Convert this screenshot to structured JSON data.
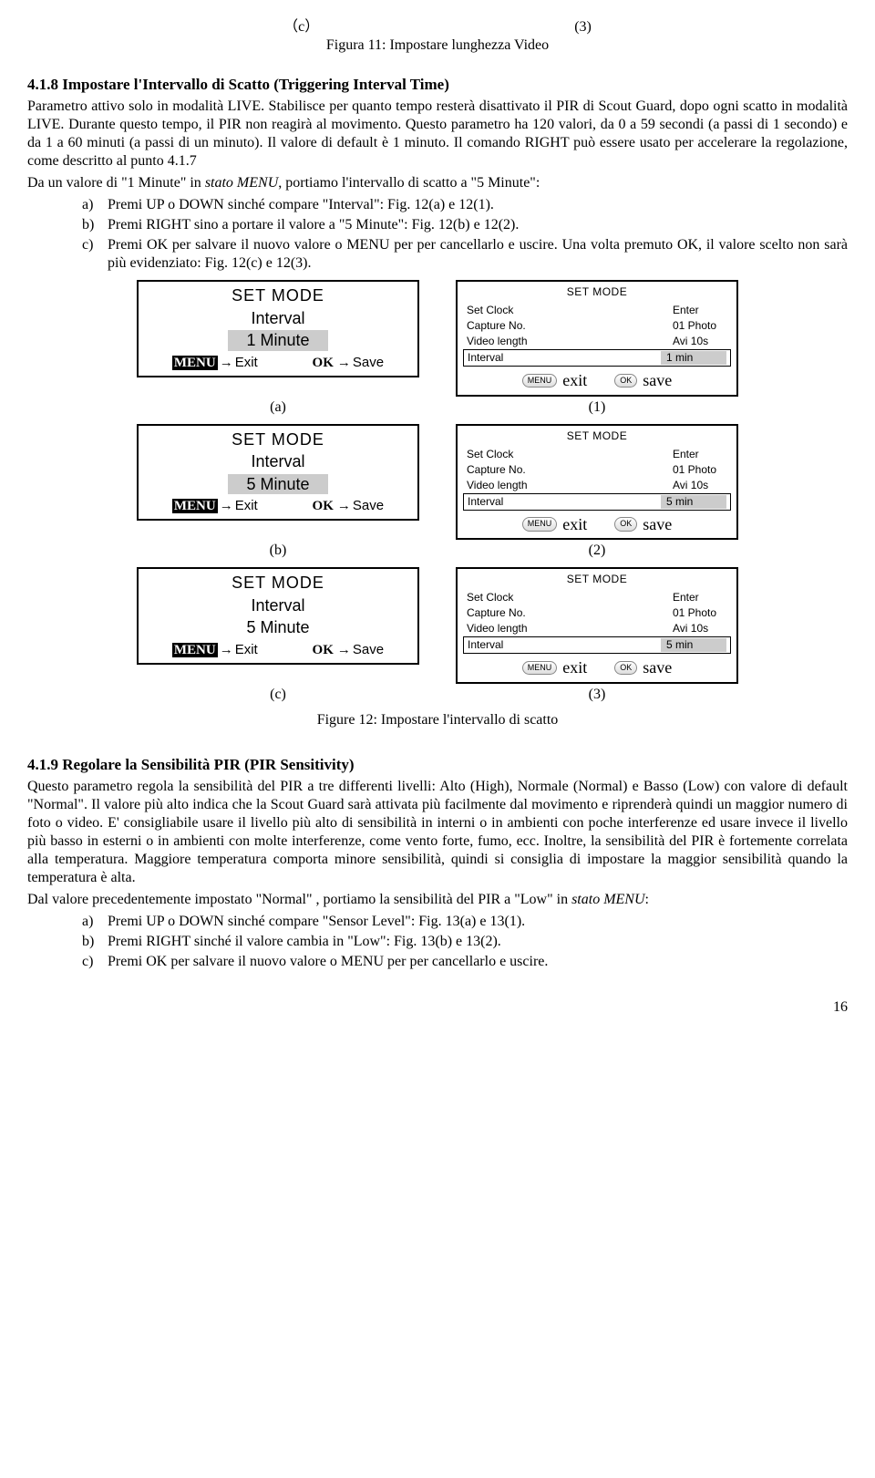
{
  "top_labels": {
    "c": "（c）",
    "n": "(3)",
    "caption": "Figura 11: Impostare lunghezza Video"
  },
  "s418": {
    "heading": "4.1.8 Impostare l'Intervallo di Scatto (Triggering Interval Time)",
    "para": "Parametro attivo solo in modalità LIVE. Stabilisce per quanto tempo resterà disattivato il PIR di Scout Guard, dopo ogni scatto in modalità LIVE. Durante questo tempo, il PIR non reagirà al movimento. Questo parametro ha 120 valori, da 0 a 59 secondi (a passi di 1 secondo) e da 1 a 60 minuti (a passi di un minuto). Il valore di default è 1 minuto. Il comando RIGHT può essere usato per accelerare la regolazione, come descritto al punto 4.1.7",
    "leadin": "Da un valore di \"1 Minute\" in ",
    "leadin_it": "stato MENU",
    "leadin2": ", portiamo l'intervallo di scatto a \"5 Minute\":",
    "items": [
      {
        "m": "a)",
        "t": "Premi UP o DOWN sinché compare \"Interval\": Fig. 12(a) e 12(1)."
      },
      {
        "m": "b)",
        "t": "Premi RIGHT sino a portare il valore a \"5 Minute\": Fig. 12(b) e 12(2)."
      },
      {
        "m": "c)",
        "t": "Premi OK per salvare il nuovo valore o MENU per per cancellarlo e uscire. Una volta premuto OK, il valore scelto non sarà più evidenziato: Fig. 12(c) e 12(3)."
      }
    ]
  },
  "fig12": {
    "caption": "Figure 12: Impostare l'intervallo di scatto",
    "labels": [
      [
        "(a)",
        "(1)"
      ],
      [
        "(b)",
        "(2)"
      ],
      [
        "(c)",
        "(3)"
      ]
    ],
    "left": [
      {
        "title": "SET MODE",
        "param": "Interval",
        "value": "1 Minute",
        "sel": true
      },
      {
        "title": "SET MODE",
        "param": "Interval",
        "value": "5 Minute",
        "sel": true
      },
      {
        "title": "SET MODE",
        "param": "Interval",
        "value": "5 Minute",
        "sel": false
      }
    ],
    "left_footer": {
      "menu": "MENU",
      "exit": "Exit",
      "ok": "OK",
      "save": "Save",
      "arrow": "→"
    },
    "right_title": "SET MODE",
    "right_rows": [
      {
        "k": "Set Clock",
        "v": "Enter"
      },
      {
        "k": "Capture No.",
        "v": "01 Photo"
      },
      {
        "k": "Video length",
        "v": "Avi 10s"
      }
    ],
    "right_sel": [
      {
        "k": "Interval",
        "v": "1 min"
      },
      {
        "k": "Interval",
        "v": "5 min"
      },
      {
        "k": "Interval",
        "v": "5 min"
      }
    ],
    "right_footer": {
      "menu": "MENU",
      "exit": "exit",
      "ok": "OK",
      "save": "save"
    }
  },
  "s419": {
    "heading": "4.1.9 Regolare la Sensibilità PIR (PIR Sensitivity)",
    "p1": "Questo parametro regola la sensibilità del PIR a tre differenti livelli: Alto (High), Normale (Normal) e Basso (Low) con valore di default \"Normal\". Il valore più alto indica che la Scout Guard sarà attivata più facilmente dal movimento e riprenderà quindi un maggior numero di foto o video. E' consigliabile usare il livello più alto di sensibilità in interni o in ambienti con poche interferenze ed usare invece il livello più basso in esterni o in ambienti con molte interferenze, come vento forte, fumo, ecc. Inoltre, la sensibilità del PIR è fortemente correlata alla temperatura. Maggiore temperatura comporta minore sensibilità, quindi si consiglia di impostare la maggior sensibilità quando la temperatura è alta.",
    "p2a": "Dal valore precedentemente impostato \"Normal\" , portiamo la sensibilità del PIR a \"Low\" in ",
    "p2it": "stato MENU",
    "p2b": ":",
    "items": [
      {
        "m": "a)",
        "t": "Premi UP o DOWN sinché compare \"Sensor Level\": Fig. 13(a) e 13(1)."
      },
      {
        "m": "b)",
        "t": "Premi RIGHT sinché il valore cambia in \"Low\": Fig. 13(b) e 13(2)."
      },
      {
        "m": "c)",
        "t": "Premi OK per salvare il nuovo valore o MENU per per cancellarlo e uscire."
      }
    ]
  },
  "pagenum": "16"
}
